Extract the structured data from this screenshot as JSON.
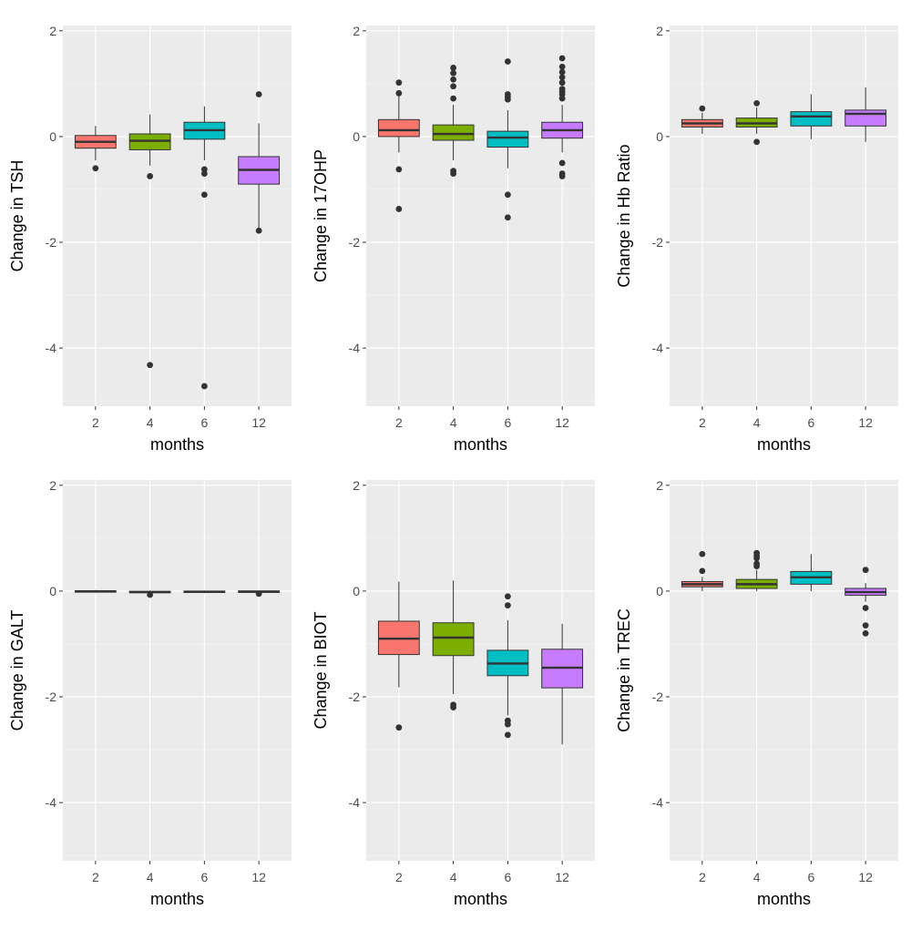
{
  "colors": {
    "panel_bg": "#EBEBEB",
    "grid": "#FFFFFF",
    "month_2": "#F8766D",
    "month_4": "#7CAE00",
    "month_6": "#00BFC4",
    "month_12": "#C77CFF",
    "outline": "#333333",
    "tick_text": "#4D4D4D",
    "axis_title": "#000000"
  },
  "chart_data": [
    {
      "type": "boxplot",
      "ylabel": "Change in TSH",
      "xlabel": "months",
      "categories": [
        "2",
        "4",
        "6",
        "12"
      ],
      "ylim": [
        -5.1,
        2.1
      ],
      "yticks": [
        2,
        0,
        -2,
        -4
      ],
      "boxes": [
        {
          "min": -0.45,
          "q1": -0.22,
          "median": -0.1,
          "q3": 0.02,
          "max": 0.2,
          "outliers": [
            -0.6
          ]
        },
        {
          "min": -0.55,
          "q1": -0.25,
          "median": -0.08,
          "q3": 0.05,
          "max": 0.42,
          "outliers": [
            -0.75,
            -4.32
          ]
        },
        {
          "min": -0.45,
          "q1": -0.05,
          "median": 0.12,
          "q3": 0.27,
          "max": 0.57,
          "outliers": [
            -0.62,
            -0.7,
            -1.1,
            -4.72
          ]
        },
        {
          "min": -1.75,
          "q1": -0.9,
          "median": -0.63,
          "q3": -0.38,
          "max": 0.25,
          "outliers": [
            0.8,
            -1.78
          ]
        }
      ]
    },
    {
      "type": "boxplot",
      "ylabel": "Change in 17OHP",
      "xlabel": "months",
      "categories": [
        "2",
        "4",
        "6",
        "12"
      ],
      "ylim": [
        -5.1,
        2.1
      ],
      "yticks": [
        2,
        0,
        -2,
        -4
      ],
      "boxes": [
        {
          "min": -0.3,
          "q1": 0.0,
          "median": 0.12,
          "q3": 0.32,
          "max": 0.8,
          "outliers": [
            1.02,
            0.82,
            -0.62,
            -1.37
          ]
        },
        {
          "min": -0.45,
          "q1": -0.07,
          "median": 0.05,
          "q3": 0.22,
          "max": 0.6,
          "outliers": [
            1.3,
            1.2,
            1.08,
            0.95,
            0.72,
            -0.65,
            -0.7
          ]
        },
        {
          "min": -0.6,
          "q1": -0.2,
          "median": -0.02,
          "q3": 0.1,
          "max": 0.5,
          "outliers": [
            1.42,
            0.8,
            0.75,
            0.7,
            -1.1,
            -1.53
          ]
        },
        {
          "min": -0.3,
          "q1": -0.03,
          "median": 0.12,
          "q3": 0.27,
          "max": 0.6,
          "outliers": [
            1.48,
            1.32,
            1.22,
            1.12,
            1.02,
            0.9,
            0.85,
            0.8,
            0.72,
            -0.5,
            -0.7,
            -0.75
          ]
        }
      ]
    },
    {
      "type": "boxplot",
      "ylabel": "Change in Hb Ratio",
      "xlabel": "months",
      "categories": [
        "2",
        "4",
        "6",
        "12"
      ],
      "ylim": [
        -5.1,
        2.1
      ],
      "yticks": [
        2,
        0,
        -2,
        -4
      ],
      "boxes": [
        {
          "min": 0.05,
          "q1": 0.18,
          "median": 0.25,
          "q3": 0.32,
          "max": 0.45,
          "outliers": [
            0.53
          ]
        },
        {
          "min": 0.05,
          "q1": 0.18,
          "median": 0.25,
          "q3": 0.35,
          "max": 0.55,
          "outliers": [
            0.63,
            -0.1
          ]
        },
        {
          "min": -0.05,
          "q1": 0.2,
          "median": 0.38,
          "q3": 0.47,
          "max": 0.8,
          "outliers": []
        },
        {
          "min": -0.1,
          "q1": 0.2,
          "median": 0.43,
          "q3": 0.5,
          "max": 0.93,
          "outliers": []
        }
      ]
    },
    {
      "type": "boxplot",
      "ylabel": "Change in GALT",
      "xlabel": "months",
      "categories": [
        "2",
        "4",
        "6",
        "12"
      ],
      "ylim": [
        -5.1,
        2.1
      ],
      "yticks": [
        2,
        0,
        -2,
        -4
      ],
      "boxes": [
        {
          "min": -0.03,
          "q1": -0.015,
          "median": -0.005,
          "q3": 0.005,
          "max": 0.02,
          "outliers": []
        },
        {
          "min": -0.05,
          "q1": -0.03,
          "median": -0.02,
          "q3": -0.005,
          "max": 0.01,
          "outliers": [
            -0.07
          ]
        },
        {
          "min": -0.04,
          "q1": -0.025,
          "median": -0.015,
          "q3": 0.0,
          "max": 0.01,
          "outliers": []
        },
        {
          "min": -0.03,
          "q1": -0.02,
          "median": -0.01,
          "q3": 0.0,
          "max": 0.01,
          "outliers": [
            -0.05
          ]
        }
      ]
    },
    {
      "type": "boxplot",
      "ylabel": "Change in BIOT",
      "xlabel": "months",
      "categories": [
        "2",
        "4",
        "6",
        "12"
      ],
      "ylim": [
        -5.1,
        2.1
      ],
      "yticks": [
        2,
        0,
        -2,
        -4
      ],
      "boxes": [
        {
          "min": -1.82,
          "q1": -1.2,
          "median": -0.9,
          "q3": -0.57,
          "max": 0.18,
          "outliers": [
            -2.58
          ]
        },
        {
          "min": -1.95,
          "q1": -1.22,
          "median": -0.88,
          "q3": -0.6,
          "max": 0.2,
          "outliers": [
            -2.15,
            -2.2
          ]
        },
        {
          "min": -2.35,
          "q1": -1.6,
          "median": -1.37,
          "q3": -1.12,
          "max": -0.55,
          "outliers": [
            -0.1,
            -0.27,
            -2.45,
            -2.52,
            -2.72
          ]
        },
        {
          "min": -2.9,
          "q1": -1.83,
          "median": -1.45,
          "q3": -1.1,
          "max": -0.62,
          "outliers": []
        }
      ]
    },
    {
      "type": "boxplot",
      "ylabel": "Change in TREC",
      "xlabel": "months",
      "categories": [
        "2",
        "4",
        "6",
        "12"
      ],
      "ylim": [
        -5.1,
        2.1
      ],
      "yticks": [
        2,
        0,
        -2,
        -4
      ],
      "boxes": [
        {
          "min": 0.0,
          "q1": 0.08,
          "median": 0.13,
          "q3": 0.18,
          "max": 0.27,
          "outliers": [
            0.7,
            0.38
          ]
        },
        {
          "min": 0.0,
          "q1": 0.05,
          "median": 0.13,
          "q3": 0.22,
          "max": 0.4,
          "outliers": [
            0.72,
            0.67,
            0.62,
            0.52,
            0.47
          ]
        },
        {
          "min": 0.0,
          "q1": 0.13,
          "median": 0.26,
          "q3": 0.37,
          "max": 0.7,
          "outliers": []
        },
        {
          "min": -0.2,
          "q1": -0.08,
          "median": -0.02,
          "q3": 0.05,
          "max": 0.15,
          "outliers": [
            0.4,
            -0.32,
            -0.65,
            -0.8
          ]
        }
      ]
    }
  ]
}
